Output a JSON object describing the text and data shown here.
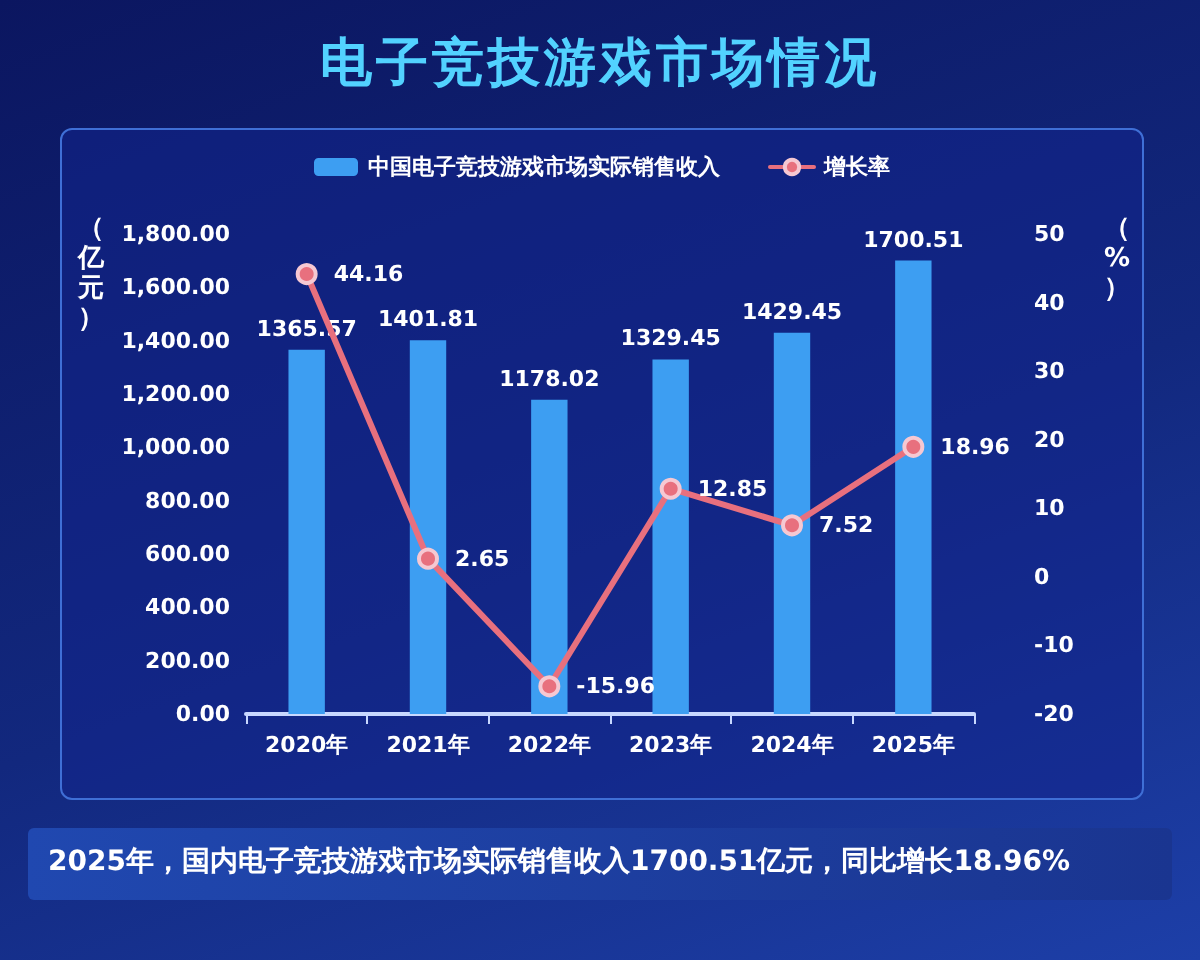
{
  "chart_data": {
    "type": "bar",
    "title": "电子竞技游戏市场情况",
    "ylabel": "（亿元）",
    "y2label": "（%）",
    "categories": [
      "2020年",
      "2021年",
      "2022年",
      "2023年",
      "2024年",
      "2025年"
    ],
    "series": [
      {
        "name": "中国电子竞技游戏市场实际销售收入",
        "color": "#3d9ef2",
        "values": [
          1365.57,
          1401.81,
          1178.02,
          1329.45,
          1429.45,
          1700.51
        ]
      },
      {
        "name": "增长率",
        "type": "line",
        "axis": "y2",
        "color": "#e8707e",
        "values": [
          44.16,
          2.65,
          -15.96,
          12.85,
          7.52,
          18.96
        ]
      }
    ],
    "ylim": [
      0,
      1800
    ],
    "yticks": [
      {
        "value": 0,
        "label": "0.00"
      },
      {
        "value": 200,
        "label": "200.00"
      },
      {
        "value": 400,
        "label": "400.00"
      },
      {
        "value": 600,
        "label": "600.00"
      },
      {
        "value": 800,
        "label": "800.00"
      },
      {
        "value": 1000,
        "label": "1,000.00"
      },
      {
        "value": 1200,
        "label": "1,200.00"
      },
      {
        "value": 1400,
        "label": "1,400.00"
      },
      {
        "value": 1600,
        "label": "1,600.00"
      },
      {
        "value": 1800,
        "label": "1,800.00"
      }
    ],
    "y2lim": [
      -20,
      50
    ],
    "y2ticks": [
      -20,
      -10,
      0,
      10,
      20,
      30,
      40,
      50
    ],
    "data_labels": true,
    "legend": "top",
    "marker": "circle",
    "line_style": "solid",
    "annotations": [
      "2025年，国内电子竞技游戏市场实际销售收入1700.51亿元，同比增长18.96%"
    ]
  }
}
